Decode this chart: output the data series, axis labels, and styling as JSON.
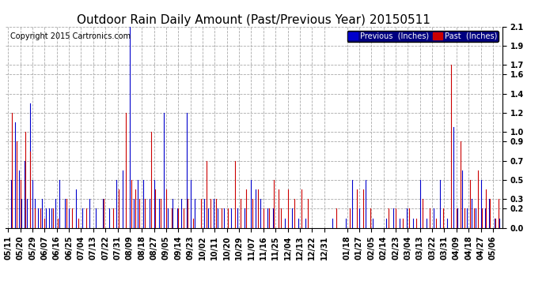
{
  "title": "Outdoor Rain Daily Amount (Past/Previous Year) 20150511",
  "copyright": "Copyright 2015 Cartronics.com",
  "legend_labels": [
    "Previous  (Inches)",
    "Past  (Inches)"
  ],
  "legend_colors": [
    "#0000cc",
    "#cc0000"
  ],
  "ylim": [
    0.0,
    2.1
  ],
  "ytick_vals": [
    0.0,
    0.2,
    0.3,
    0.5,
    0.7,
    0.9,
    1.0,
    1.2,
    1.4,
    1.6,
    1.7,
    1.9,
    2.1
  ],
  "background_color": "#ffffff",
  "plot_bg_color": "#ffffff",
  "grid_color": "#aaaaaa",
  "title_fontsize": 11,
  "tick_fontsize": 7,
  "x_labels": [
    "05/11",
    "05/20",
    "05/29",
    "06/07",
    "06/16",
    "06/25",
    "07/04",
    "07/13",
    "07/22",
    "07/31",
    "08/09",
    "08/18",
    "08/27",
    "09/05",
    "09/14",
    "09/23",
    "10/02",
    "10/11",
    "10/20",
    "10/29",
    "11/07",
    "11/16",
    "11/25",
    "12/04",
    "12/13",
    "12/22",
    "12/31",
    "01/18",
    "01/27",
    "02/05",
    "02/14",
    "02/23",
    "03/04",
    "03/13",
    "03/22",
    "03/31",
    "04/09",
    "04/18",
    "04/27",
    "05/06"
  ],
  "n_days": 365,
  "prev_rain_days": [
    2,
    5,
    8,
    10,
    12,
    14,
    16,
    18,
    20,
    22,
    25,
    28,
    30,
    32,
    35,
    38,
    42,
    45,
    50,
    55,
    60,
    65,
    70,
    75,
    80,
    85,
    90,
    93,
    96,
    100,
    105,
    108,
    112,
    115,
    118,
    122,
    125,
    128,
    132,
    135,
    138,
    145,
    148,
    152,
    155,
    160,
    165,
    170,
    175,
    180,
    183,
    187,
    192,
    196,
    200,
    205,
    210,
    215,
    220,
    240,
    250,
    255,
    260,
    265,
    270,
    280,
    285,
    290,
    295,
    300,
    305,
    310,
    315,
    320,
    325,
    330,
    333,
    336,
    340,
    343,
    346,
    350,
    353,
    356,
    360,
    364
  ],
  "prev_rain_vals": [
    0.5,
    1.1,
    0.6,
    0.3,
    0.7,
    0.3,
    1.3,
    0.5,
    0.3,
    0.2,
    0.3,
    0.2,
    0.2,
    0.2,
    0.3,
    0.5,
    0.3,
    0.2,
    0.4,
    0.2,
    0.3,
    0.2,
    0.3,
    0.2,
    0.5,
    0.6,
    2.1,
    0.3,
    0.5,
    0.5,
    0.3,
    0.5,
    0.3,
    1.2,
    0.2,
    0.3,
    0.2,
    0.3,
    1.2,
    0.5,
    0.3,
    0.3,
    0.2,
    0.3,
    0.2,
    0.2,
    0.2,
    0.2,
    0.2,
    0.5,
    0.4,
    0.3,
    0.2,
    0.2,
    0.2,
    0.1,
    0.2,
    0.1,
    0.1,
    0.1,
    0.1,
    0.5,
    0.2,
    0.5,
    0.1,
    0.1,
    0.2,
    0.1,
    0.2,
    0.1,
    0.5,
    0.1,
    0.2,
    0.5,
    0.1,
    1.05,
    0.2,
    0.6,
    0.2,
    0.3,
    0.2,
    0.5,
    0.2,
    0.3,
    0.1,
    0.1
  ],
  "past_rain_days": [
    3,
    6,
    9,
    13,
    16,
    20,
    24,
    27,
    33,
    37,
    43,
    47,
    52,
    58,
    71,
    78,
    82,
    87,
    91,
    94,
    97,
    101,
    106,
    109,
    113,
    117,
    121,
    126,
    130,
    133,
    137,
    143,
    147,
    150,
    154,
    158,
    163,
    168,
    172,
    176,
    181,
    185,
    189,
    193,
    197,
    200,
    202,
    207,
    212,
    217,
    222,
    243,
    253,
    258,
    263,
    268,
    282,
    287,
    292,
    297,
    302,
    307,
    312,
    317,
    322,
    328,
    332,
    335,
    338,
    342,
    345,
    348,
    351,
    354,
    357,
    361,
    363
  ],
  "past_rain_vals": [
    1.2,
    0.9,
    0.5,
    1.0,
    0.8,
    0.2,
    0.2,
    0.1,
    0.2,
    0.1,
    0.3,
    0.2,
    0.1,
    0.2,
    0.3,
    0.2,
    0.4,
    1.2,
    0.5,
    0.4,
    0.3,
    0.3,
    1.0,
    0.4,
    0.3,
    0.4,
    0.2,
    0.2,
    0.2,
    0.3,
    0.1,
    0.3,
    0.7,
    0.3,
    0.3,
    0.2,
    0.2,
    0.7,
    0.3,
    0.4,
    0.3,
    0.4,
    0.2,
    0.2,
    0.5,
    0.4,
    0.2,
    0.4,
    0.3,
    0.4,
    0.3,
    0.2,
    0.2,
    0.4,
    0.4,
    0.2,
    0.2,
    0.2,
    0.1,
    0.2,
    0.1,
    0.3,
    0.2,
    0.1,
    0.2,
    1.7,
    0.2,
    0.9,
    0.2,
    0.5,
    0.2,
    0.6,
    0.2,
    0.4,
    0.3,
    0.1,
    0.3
  ]
}
